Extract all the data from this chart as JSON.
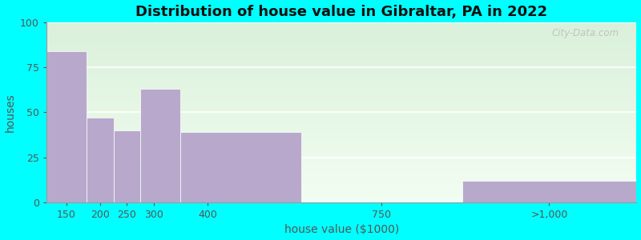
{
  "title": "Distribution of house value in Gibraltar, PA in 2022",
  "xlabel": "house value ($1000)",
  "ylabel": "houses",
  "bar_labels": [
    "150",
    "200",
    "250",
    "300",
    "400",
    "750",
    ">1,000"
  ],
  "bar_values": [
    84,
    47,
    40,
    63,
    39,
    0,
    12
  ],
  "bar_color": "#b8a9cc",
  "yticks": [
    0,
    25,
    50,
    75,
    100
  ],
  "ylim": [
    0,
    100
  ],
  "outer_bg": "#00ffff",
  "title_fontsize": 13,
  "axis_label_fontsize": 10,
  "tick_fontsize": 9,
  "watermark_text": "City-Data.com",
  "bar_lefts": [
    100,
    175,
    225,
    275,
    350,
    575,
    875
  ],
  "bar_rights": [
    175,
    225,
    275,
    350,
    575,
    875,
    1200
  ],
  "xlim_left": 100,
  "xlim_right": 1200
}
